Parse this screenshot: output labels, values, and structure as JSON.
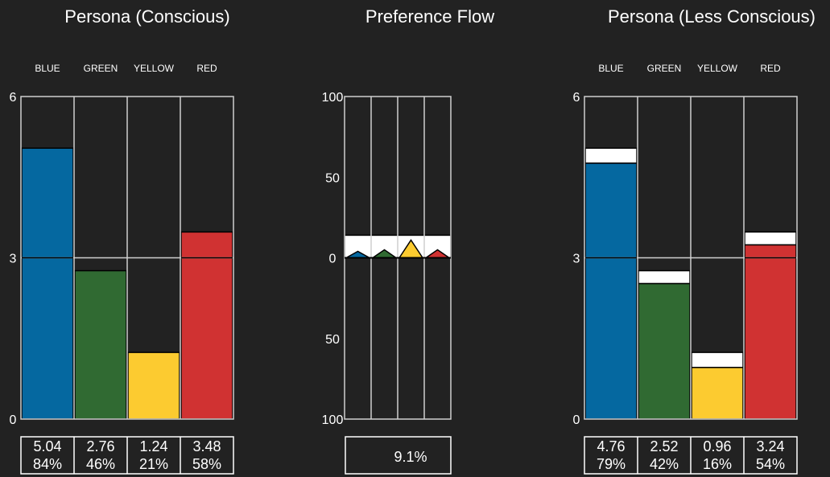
{
  "chart_data": [
    {
      "type": "bar",
      "title": "Persona (Conscious)",
      "categories": [
        "BLUE",
        "GREEN",
        "YELLOW",
        "RED"
      ],
      "values": [
        5.04,
        2.76,
        1.24,
        3.48
      ],
      "percents": [
        "84%",
        "46%",
        "21%",
        "58%"
      ],
      "value_labels": [
        "5.04",
        "2.76",
        "1.24",
        "3.48"
      ],
      "colors": [
        "#0568a0",
        "#306a32",
        "#fccb30",
        "#d03232"
      ],
      "ylim": [
        0,
        6
      ],
      "yticks": [
        "0",
        "3",
        "6"
      ],
      "grid": true
    },
    {
      "type": "bar",
      "title": "Preference Flow",
      "categories": [
        "BLUE",
        "GREEN",
        "YELLOW",
        "RED"
      ],
      "values": [
        4,
        5,
        11,
        5
      ],
      "colors": [
        "#0568a0",
        "#306a32",
        "#fccb30",
        "#d03232"
      ],
      "ylim": [
        -100,
        100
      ],
      "yticks": [
        "100",
        "50",
        "0",
        "50",
        "100"
      ],
      "summary": "9.1%",
      "grid": true
    },
    {
      "type": "bar",
      "title": "Persona (Less Conscious)",
      "categories": [
        "BLUE",
        "GREEN",
        "YELLOW",
        "RED"
      ],
      "values": [
        4.76,
        2.52,
        0.96,
        3.24
      ],
      "conscious_values": [
        5.04,
        2.76,
        1.24,
        3.48
      ],
      "percents": [
        "79%",
        "42%",
        "16%",
        "54%"
      ],
      "value_labels": [
        "4.76",
        "2.52",
        "0.96",
        "3.24"
      ],
      "colors": [
        "#0568a0",
        "#306a32",
        "#fccb30",
        "#d03232"
      ],
      "ylim": [
        0,
        6
      ],
      "yticks": [
        "0",
        "3",
        "6"
      ],
      "grid": true
    }
  ]
}
